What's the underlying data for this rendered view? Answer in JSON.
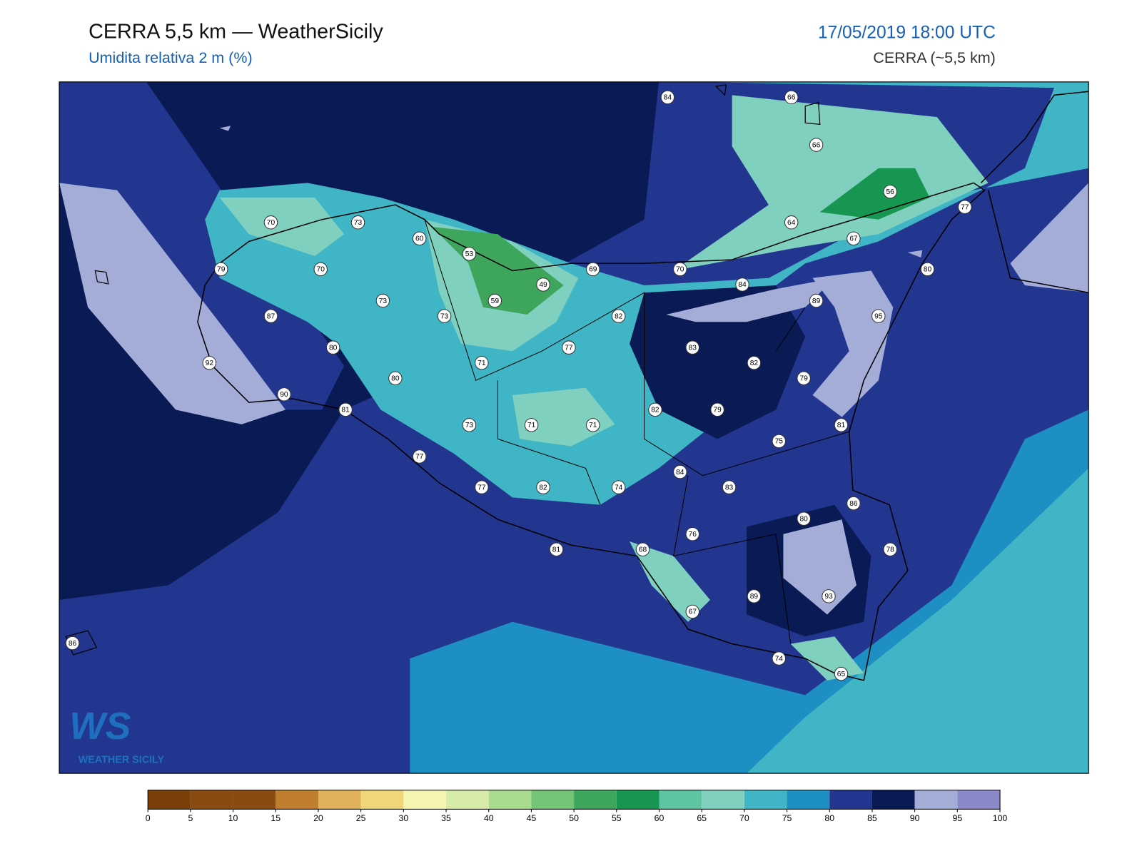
{
  "header": {
    "title": "CERRA 5,5 km — WeatherSicily",
    "subtitle": "Umidita relativa 2 m (%)",
    "datetime": "17/05/2019 18:00 UTC",
    "model": "CERRA (~5,5 km)"
  },
  "logo": {
    "mark": "WS",
    "name": "WEATHER SICILY"
  },
  "stations": [
    84,
    66,
    66,
    56,
    77,
    64,
    67,
    70,
    73,
    60,
    53,
    69,
    70,
    84,
    49,
    79,
    70,
    73,
    59,
    89,
    95,
    80,
    87,
    73,
    82,
    77,
    83,
    82,
    80,
    71,
    79,
    92,
    80,
    90,
    81,
    82,
    79,
    81,
    73,
    71,
    71,
    75,
    77,
    84,
    77,
    82,
    74,
    83,
    86,
    80,
    76,
    68,
    81,
    78,
    89,
    93,
    67,
    86,
    74,
    65
  ],
  "colorbar": {
    "ticks": [
      0,
      5,
      10,
      15,
      20,
      25,
      30,
      35,
      40,
      45,
      50,
      55,
      60,
      65,
      70,
      75,
      80,
      85,
      90,
      95,
      100
    ],
    "colors": [
      "#7b3f09",
      "#8b4a10",
      "#8b4a10",
      "#c07e2c",
      "#dfb15a",
      "#f0d57a",
      "#f6f5b0",
      "#d8ecaa",
      "#a9dc8e",
      "#74c476",
      "#3ea55c",
      "#169650",
      "#5fc4a4",
      "#80d0c0",
      "#40b5c5",
      "#1e8fc2",
      "#22368f",
      "#0a1a55",
      "#a4acd8",
      "#8a88c8"
    ]
  }
}
